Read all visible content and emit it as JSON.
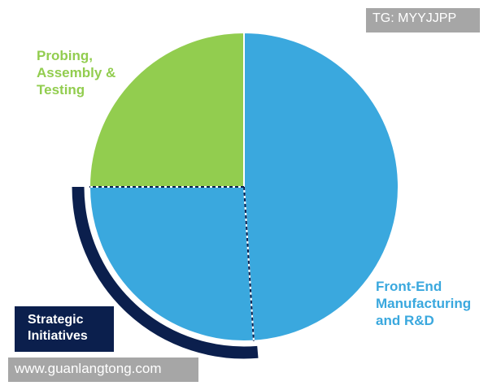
{
  "chart_data": {
    "type": "pie",
    "categories": [
      "Front-End Manufacturing and R&D",
      null,
      "Probing, Assembly & Testing"
    ],
    "values": [
      49,
      26,
      25
    ],
    "colors": [
      "#3aa8de",
      "#3aa8de",
      "#92cd4f"
    ],
    "label_colors": [
      "#3aa8de",
      null,
      "#92cd4f"
    ],
    "annotation": "Strategic Initiatives",
    "watermarks": [
      "TG: MYYJJPP",
      "www.guanlangtong.com"
    ]
  }
}
